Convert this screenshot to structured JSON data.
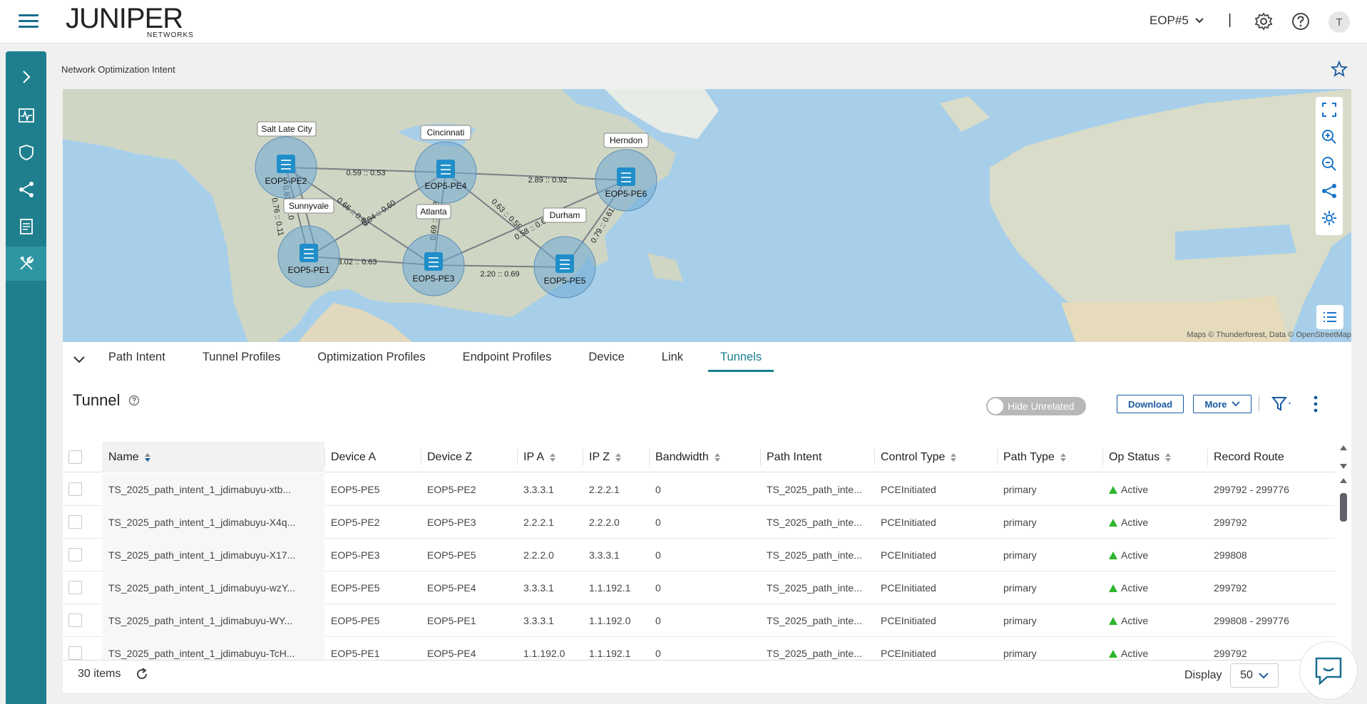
{
  "header": {
    "logo_main": "JUNIPER",
    "logo_sub": "NETWORKS",
    "org": "EOP#5",
    "separator": "|",
    "avatar": "T"
  },
  "page": {
    "title": "Network Optimization Intent"
  },
  "map": {
    "attribution": "Maps © Thunderforest, Data © OpenStreetMap",
    "sites": [
      {
        "city": "Salt Late City",
        "device": "EOP5-PE2"
      },
      {
        "city": "Cincinnati",
        "device": "EOP5-PE4"
      },
      {
        "city": "Herndon",
        "device": "EOP5-PE6"
      },
      {
        "city": "Sunnyvale",
        "device": "EOP5-PE1"
      },
      {
        "city": "Atlanta",
        "device": "EOP5-PE3"
      },
      {
        "city": "Durham",
        "device": "EOP5-PE5"
      }
    ],
    "links": [
      {
        "label": "0.59 :: 0.53"
      },
      {
        "label": "2.89 :: 0.92"
      },
      {
        "label": "0.76 :: 0.11"
      },
      {
        "label": "0.82 :: 0.0"
      },
      {
        "label": "0.66 :: 0.63"
      },
      {
        "label": "0.94 :: 0.60"
      },
      {
        "label": "0.69 :: 0.63"
      },
      {
        "label": "0.63 :: 0.58"
      },
      {
        "label": "0.58 :: 0.62"
      },
      {
        "label": "0.79 :: 0.61"
      },
      {
        "label": "3.02 :: 0.63"
      },
      {
        "label": "2.20 :: 0.69"
      }
    ]
  },
  "tabs": [
    "Path Intent",
    "Tunnel Profiles",
    "Optimization Profiles",
    "Endpoint Profiles",
    "Device",
    "Link",
    "Tunnels"
  ],
  "active_tab": "Tunnels",
  "section": {
    "title": "Tunnel"
  },
  "toolbar": {
    "hide_unrelated": "Hide Unrelated",
    "download": "Download",
    "more": "More"
  },
  "table": {
    "columns": [
      "Name",
      "Device A",
      "Device Z",
      "IP A",
      "IP Z",
      "Bandwidth",
      "Path Intent",
      "Control Type",
      "Path Type",
      "Op Status",
      "Record Route"
    ],
    "rows": [
      [
        "TS_2025_path_intent_1_jdimabuyu-xtb...",
        "EOP5-PE5",
        "EOP5-PE2",
        "3.3.3.1",
        "2.2.2.1",
        "0",
        "TS_2025_path_inte...",
        "PCEInitiated",
        "primary",
        "Active",
        "299792 - 299776"
      ],
      [
        "TS_2025_path_intent_1_jdimabuyu-X4q...",
        "EOP5-PE2",
        "EOP5-PE3",
        "2.2.2.1",
        "2.2.2.0",
        "0",
        "TS_2025_path_inte...",
        "PCEInitiated",
        "primary",
        "Active",
        "299792"
      ],
      [
        "TS_2025_path_intent_1_jdimabuyu-X17...",
        "EOP5-PE3",
        "EOP5-PE5",
        "2.2.2.0",
        "3.3.3.1",
        "0",
        "TS_2025_path_inte...",
        "PCEInitiated",
        "primary",
        "Active",
        "299808"
      ],
      [
        "TS_2025_path_intent_1_jdimabuyu-wzY...",
        "EOP5-PE5",
        "EOP5-PE4",
        "3.3.3.1",
        "1.1.192.1",
        "0",
        "TS_2025_path_inte...",
        "PCEInitiated",
        "primary",
        "Active",
        "299792"
      ],
      [
        "TS_2025_path_intent_1_jdimabuyu-WY...",
        "EOP5-PE5",
        "EOP5-PE1",
        "3.3.3.1",
        "1.1.192.0",
        "0",
        "TS_2025_path_inte...",
        "PCEInitiated",
        "primary",
        "Active",
        "299808 - 299776"
      ],
      [
        "TS_2025_path_intent_1_jdimabuyu-TcH...",
        "EOP5-PE1",
        "EOP5-PE4",
        "1.1.192.0",
        "1.1.192.1",
        "0",
        "TS_2025_path_inte...",
        "PCEInitiated",
        "primary",
        "Active",
        "299792"
      ]
    ]
  },
  "footer": {
    "items": "30 items",
    "display_label": "Display",
    "display_value": "50"
  },
  "colors": {
    "accent": "#1a7f8e",
    "nav_bg": "#1f7f8e",
    "link_blue": "#1a5aa0",
    "active_green": "#2db52d"
  },
  "icons": [
    "hamburger-icon",
    "chevron-down-icon",
    "gear-icon",
    "help-icon",
    "star-icon",
    "chevron-right-icon",
    "pulse-icon",
    "shield-icon",
    "topology-icon",
    "document-icon",
    "tools-icon",
    "fullscreen-icon",
    "zoom-in-icon",
    "zoom-out-icon",
    "share-icon",
    "settings-icon",
    "list-icon",
    "filter-icon",
    "kebab-icon",
    "refresh-icon",
    "chat-icon"
  ]
}
